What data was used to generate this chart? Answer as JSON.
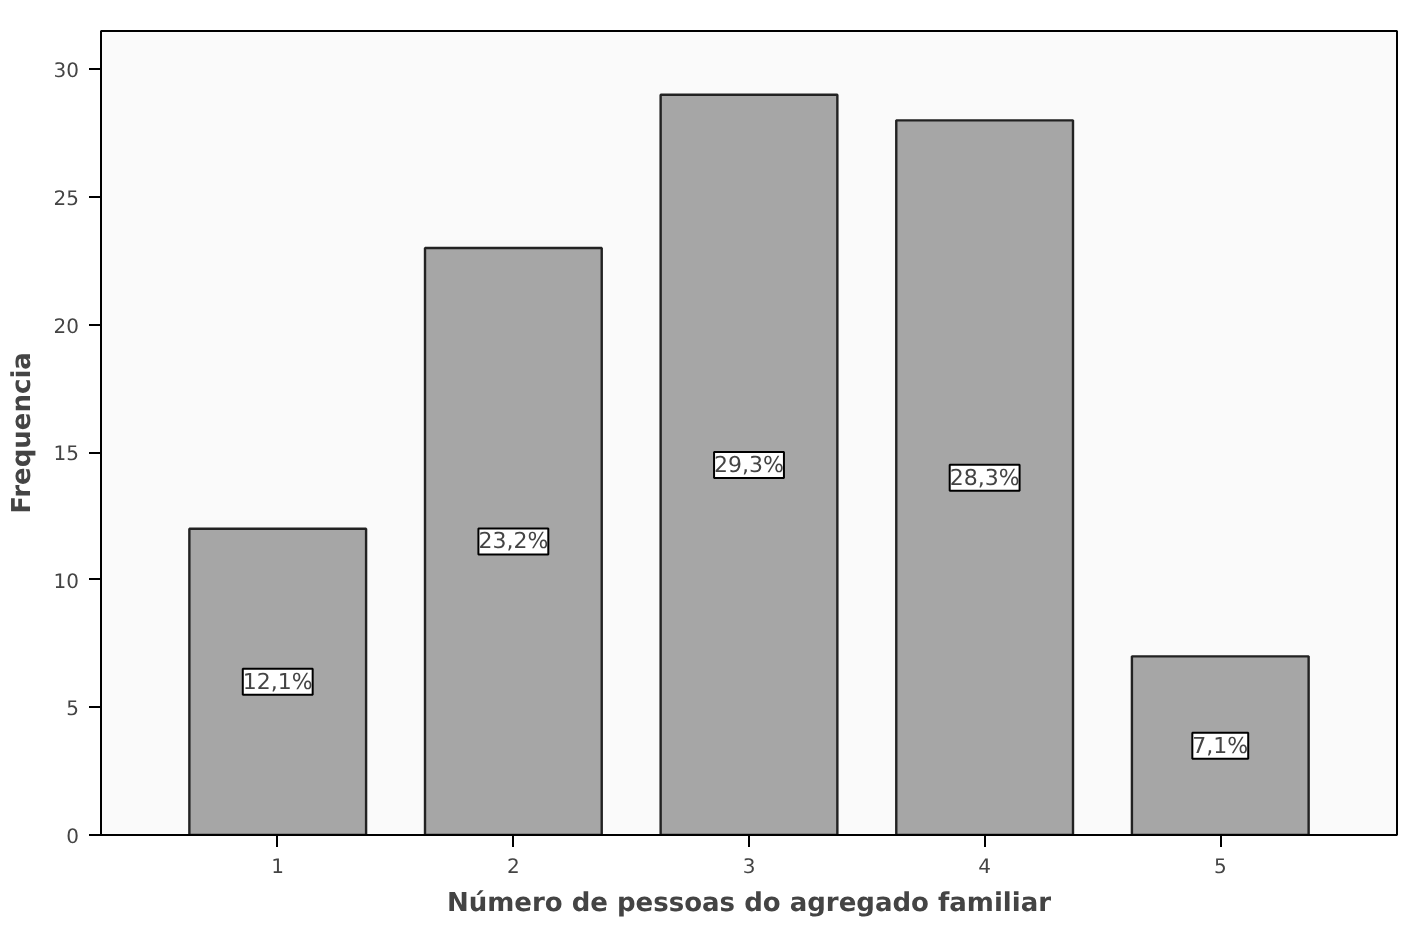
{
  "chart_data": {
    "type": "bar",
    "xlabel": "Número de pessoas do agregado familiar",
    "ylabel": "Frequencia",
    "categories": [
      "1",
      "2",
      "3",
      "4",
      "5"
    ],
    "values": [
      12,
      23,
      29,
      28,
      7
    ],
    "annotations": [
      {
        "text": "12,1%",
        "x": "1",
        "y": 6
      },
      {
        "text": "23,2%",
        "x": "2",
        "y": 11.5
      },
      {
        "text": "29,3%",
        "x": "3",
        "y": 14.5
      },
      {
        "text": "28,3%",
        "x": "4",
        "y": 14
      },
      {
        "text": "7,1%",
        "x": "5",
        "y": 3.5
      }
    ],
    "color": "#a6a6a6",
    "ylim": [
      0,
      31.5
    ],
    "yticks": [
      0,
      5,
      10,
      15,
      20,
      25,
      30
    ],
    "grid": false
  }
}
